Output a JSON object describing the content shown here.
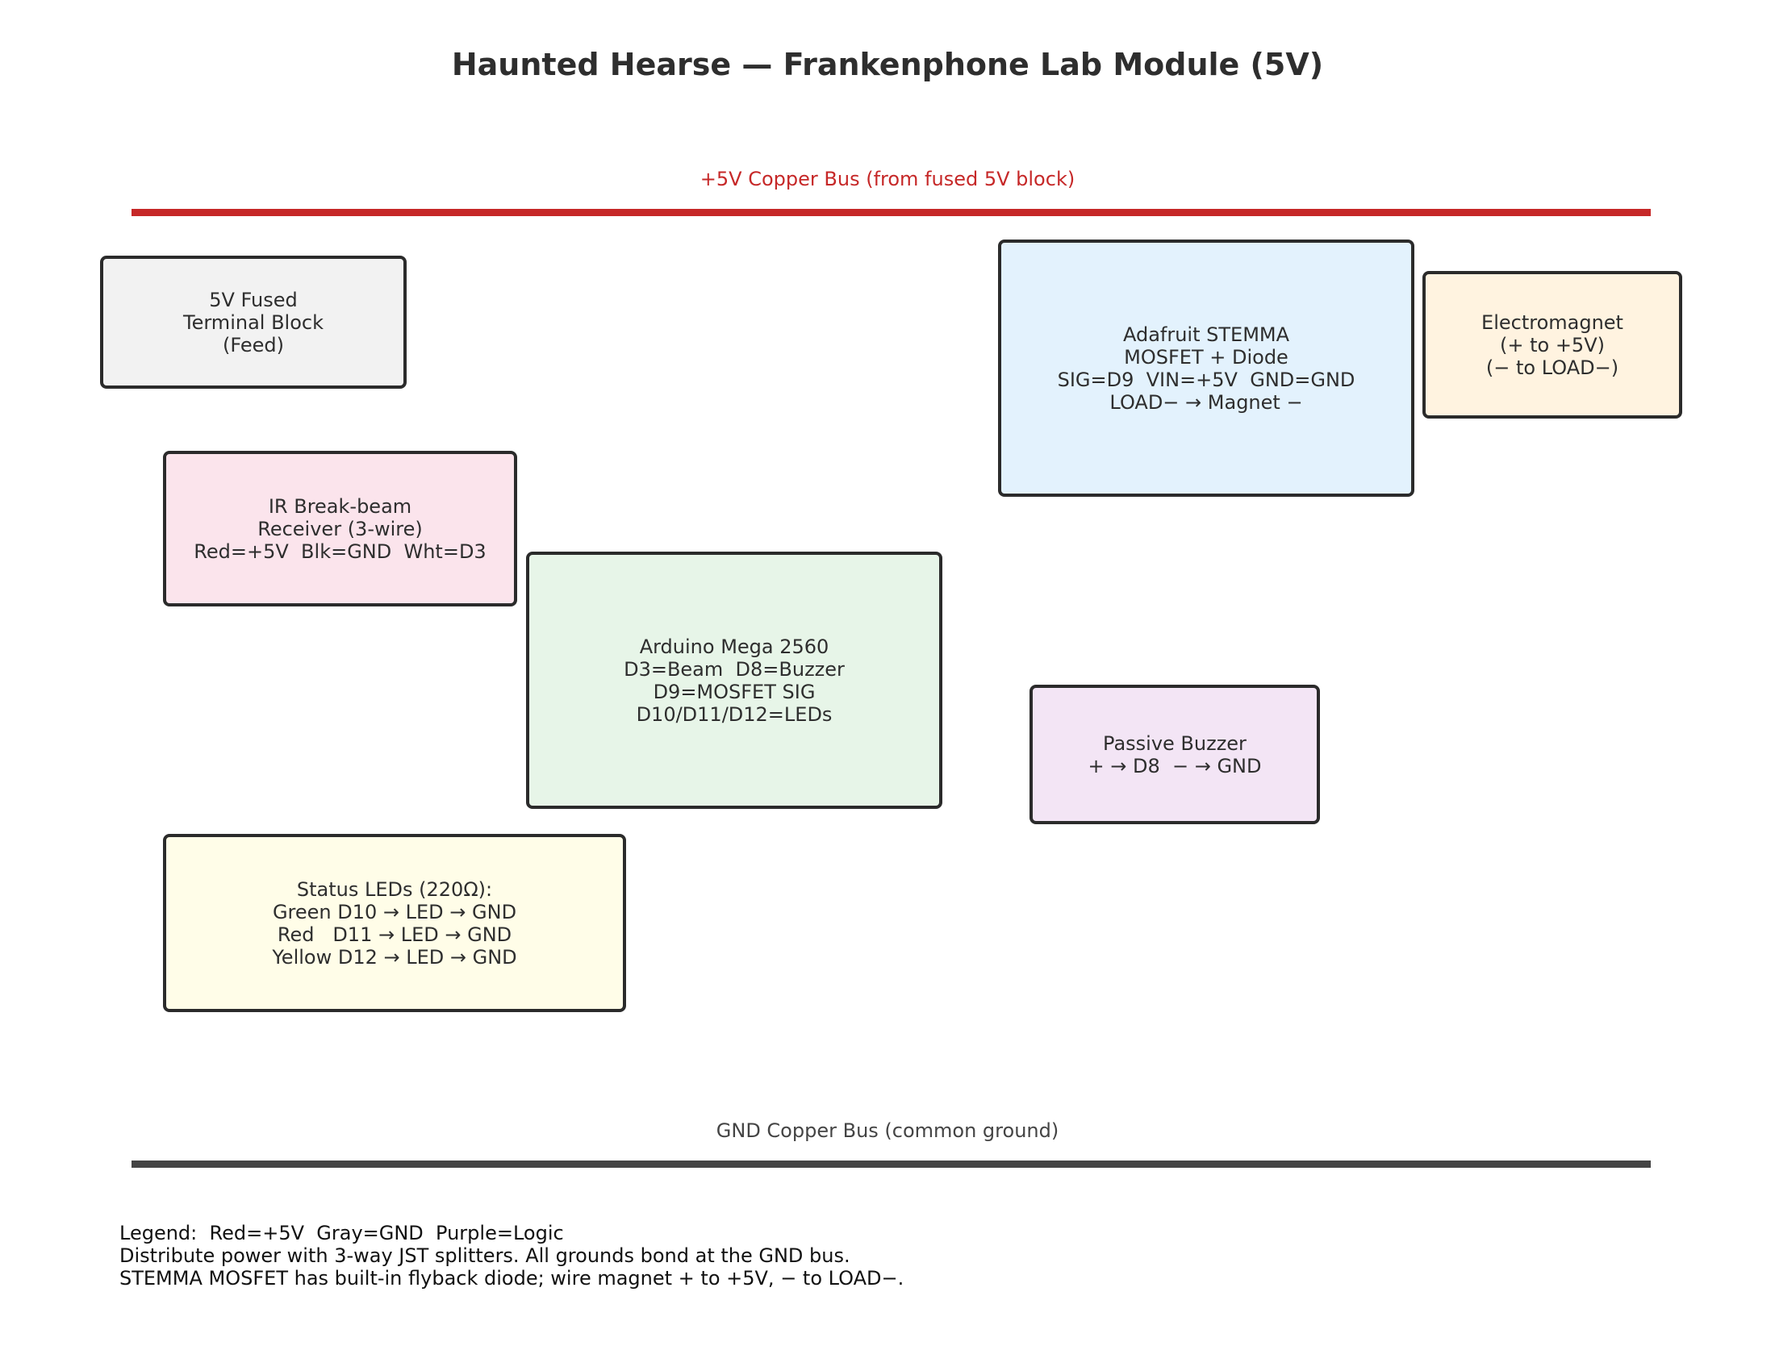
{
  "title": "Haunted Hearse — Frankenphone Lab Module (5V)",
  "colors": {
    "power": "#c62828",
    "ground": "#444444",
    "text": "#2e2e2e",
    "border": "#2b2b2b"
  },
  "buses": {
    "power": {
      "label": "+5V Copper Bus (from fused 5V block)"
    },
    "ground": {
      "label": "GND Copper Bus (common ground)"
    }
  },
  "blocks": {
    "fused_block": {
      "lines": [
        "5V Fused",
        "Terminal Block",
        "(Feed)"
      ],
      "fill": "#f2f2f2"
    },
    "ir_receiver": {
      "lines": [
        "IR Break-beam",
        "Receiver (3-wire)",
        "Red=+5V  Blk=GND  Wht=D3"
      ],
      "fill": "#fbe4ec"
    },
    "arduino": {
      "lines": [
        "Arduino Mega 2560",
        "D3=Beam  D8=Buzzer",
        "D9=MOSFET SIG",
        "D10/D11/D12=LEDs"
      ],
      "fill": "#e7f5e8"
    },
    "status_leds": {
      "lines": [
        "Status LEDs (220Ω):",
        "Green D10 → LED → GND",
        "Red   D11 → LED → GND",
        "Yellow D12 → LED → GND"
      ],
      "fill": "#fffde8"
    },
    "mosfet": {
      "lines": [
        "Adafruit STEMMA",
        "MOSFET + Diode",
        "SIG=D9  VIN=+5V  GND=GND",
        "LOAD− → Magnet −"
      ],
      "fill": "#e3f2fd"
    },
    "electromagnet": {
      "lines": [
        "Electromagnet",
        "(+ to +5V)",
        "(− to LOAD−)"
      ],
      "fill": "#fff3e0"
    },
    "buzzer": {
      "lines": [
        "Passive Buzzer",
        "+ → D8  − → GND"
      ],
      "fill": "#f3e5f5"
    }
  },
  "legend": [
    "Legend:  Red=+5V  Gray=GND  Purple=Logic",
    "Distribute power with 3-way JST splitters. All grounds bond at the GND bus.",
    "STEMMA MOSFET has built-in flyback diode; wire magnet + to +5V, − to LOAD−."
  ]
}
